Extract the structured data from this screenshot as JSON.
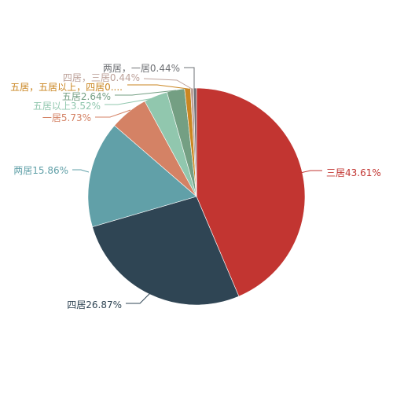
{
  "chart_data": {
    "type": "pie",
    "title": "",
    "slices": [
      {
        "name": "三居",
        "value": 43.61,
        "label": "三居43.61%",
        "color": "#c23531"
      },
      {
        "name": "四居",
        "value": 26.87,
        "label": "四居26.87%",
        "color": "#2f4554"
      },
      {
        "name": "两居",
        "value": 15.86,
        "label": "两居15.86%",
        "color": "#61a0a8"
      },
      {
        "name": "一居",
        "value": 5.73,
        "label": "一居5.73%",
        "color": "#d48265"
      },
      {
        "name": "五居以上",
        "value": 3.52,
        "label": "五居以上3.52%",
        "color": "#91c7ae"
      },
      {
        "name": "五居",
        "value": 2.64,
        "label": "五居2.64%",
        "color": "#749f83"
      },
      {
        "name": "五居，五居以上，四居",
        "value": 0.88,
        "label": "五居，五居以上，四居0....",
        "color": "#ca8622"
      },
      {
        "name": "四居，三居",
        "value": 0.44,
        "label": "四居，三居0.44%",
        "color": "#bda29a"
      },
      {
        "name": "两居，一居",
        "value": 0.44,
        "label": "两居，一居0.44%",
        "color": "#6e7074"
      }
    ]
  }
}
